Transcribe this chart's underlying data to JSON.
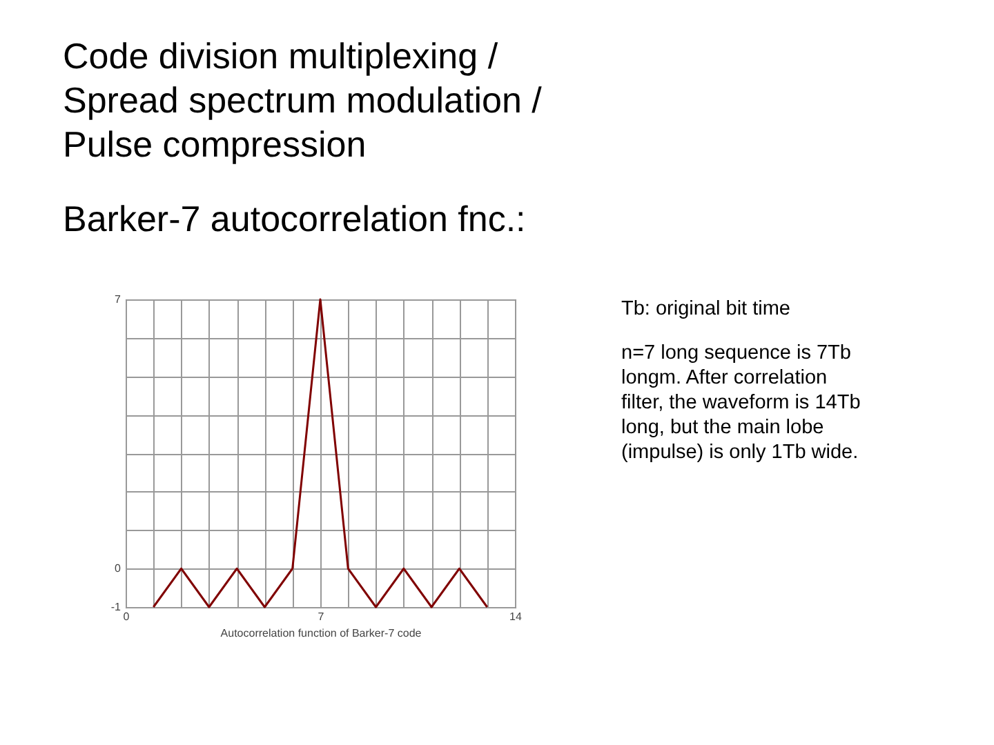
{
  "chart_data": {
    "type": "line",
    "title": "Code division multiplexing / Spread spectrum modulation / Pulse compression",
    "subtitle": "Barker-7 autocorrelation fnc.:",
    "xlabel": "Autocorrelation function of Barker-7 code",
    "x": [
      1,
      2,
      3,
      4,
      5,
      6,
      7,
      8,
      9,
      10,
      11,
      12,
      13
    ],
    "series": [
      {
        "color": "#800000",
        "values": [
          -1,
          0,
          -1,
          0,
          -1,
          0,
          7,
          0,
          -1,
          0,
          -1,
          0,
          -1
        ]
      }
    ],
    "xlim": [
      0,
      14
    ],
    "xticks": [
      0,
      {
        "value": 1,
        "label": null
      },
      {
        "value": 2,
        "label": null
      },
      {
        "value": 3,
        "label": null
      },
      {
        "value": 4,
        "label": null
      },
      {
        "value": 5,
        "label": null
      },
      {
        "value": 6,
        "label": null
      },
      7,
      {
        "value": 8,
        "label": null
      },
      {
        "value": 9,
        "label": null
      },
      {
        "value": 10,
        "label": null
      },
      {
        "value": 11,
        "label": null
      },
      {
        "value": 12,
        "label": null
      },
      {
        "value": 13,
        "label": null
      },
      14
    ],
    "ylim": [
      -1,
      7
    ],
    "yticks": [
      -1,
      0,
      {
        "value": 1,
        "label": null
      },
      {
        "value": 2,
        "label": null
      },
      {
        "value": 3,
        "label": null
      },
      {
        "value": 4,
        "label": null
      },
      {
        "value": 5,
        "label": null
      },
      {
        "value": 6,
        "label": null
      },
      7
    ],
    "grid": true,
    "annotations": [
      "Tb: original bit time",
      "n=7 long sequence is 7Tb longm. After correlation filter, the waveform is 14Tb long, but the main lobe (impulse) is only 1Tb wide."
    ]
  }
}
